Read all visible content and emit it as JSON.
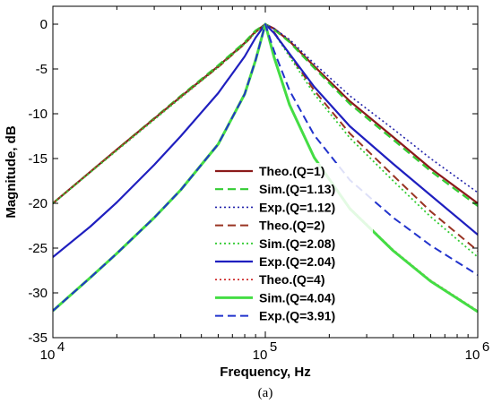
{
  "chart_data": {
    "type": "line",
    "xlabel": "Frequency, Hz",
    "ylabel": "Magnitude, dB",
    "caption": "(a)",
    "xscale": "log",
    "xlim": [
      10000,
      1000000
    ],
    "ylim": [
      -35,
      2
    ],
    "yticks": [
      0,
      -5,
      -10,
      -15,
      -20,
      -25,
      -30,
      -35
    ],
    "xticks": [
      {
        "value": 10000,
        "base": "10",
        "exp": "4"
      },
      {
        "value": 100000,
        "base": "10",
        "exp": "5"
      },
      {
        "value": 1000000,
        "base": "10",
        "exp": "6"
      }
    ],
    "grid": false,
    "legend_position": "inside-bottom-center",
    "series": [
      {
        "name": "Theo.(Q=1)",
        "color": "#8B1A1A",
        "style": "solid",
        "width": 2.2,
        "x": [
          10000,
          20000,
          40000,
          60000,
          80000,
          90000,
          100000,
          110000,
          130000,
          170000,
          250000,
          400000,
          600000,
          1000000
        ],
        "y": [
          -20,
          -14.0,
          -8.1,
          -4.7,
          -2.1,
          -0.8,
          0,
          -0.5,
          -1.9,
          -4.7,
          -8.6,
          -12.6,
          -16.1,
          -20
        ]
      },
      {
        "name": "Sim.(Q=1.13)",
        "color": "#33CC33",
        "style": "dashed",
        "width": 2.2,
        "x": [
          10000,
          20000,
          40000,
          60000,
          80000,
          90000,
          100000,
          110000,
          130000,
          170000,
          250000,
          400000,
          600000,
          1000000
        ],
        "y": [
          -20,
          -14.0,
          -8.0,
          -4.6,
          -2.0,
          -0.7,
          0,
          -0.6,
          -2.0,
          -4.9,
          -8.9,
          -12.9,
          -16.4,
          -20.3
        ]
      },
      {
        "name": "Exp.(Q=1.12)",
        "color": "#2222AA",
        "style": "dotted",
        "width": 1.6,
        "x": [
          10000,
          20000,
          40000,
          60000,
          80000,
          90000,
          100000,
          110000,
          130000,
          170000,
          250000,
          400000,
          600000,
          1000000
        ],
        "y": [
          -20,
          -14.1,
          -8.2,
          -4.8,
          -2.2,
          -0.9,
          0,
          -0.5,
          -1.7,
          -4.4,
          -8.0,
          -11.7,
          -15.0,
          -18.8
        ]
      },
      {
        "name": "Theo.(Q=2)",
        "color": "#993322",
        "style": "dashed",
        "width": 2.0,
        "x": [
          10000,
          20000,
          40000,
          60000,
          80000,
          90000,
          100000,
          110000,
          130000,
          170000,
          250000,
          400000,
          600000,
          1000000
        ],
        "y": [
          -20,
          -14.0,
          -8.1,
          -4.8,
          -2.2,
          -0.9,
          0,
          -0.9,
          -3.4,
          -7.4,
          -12.2,
          -16.9,
          -20.9,
          -25.3
        ]
      },
      {
        "name": "Sim.(Q=2.08)",
        "color": "#33CC33",
        "style": "dotted",
        "width": 1.8,
        "x": [
          10000,
          20000,
          40000,
          60000,
          80000,
          90000,
          100000,
          110000,
          130000,
          170000,
          250000,
          400000,
          600000,
          1000000
        ],
        "y": [
          -20,
          -14.1,
          -8.2,
          -4.8,
          -2.2,
          -0.9,
          0,
          -1.0,
          -3.6,
          -7.8,
          -12.7,
          -17.5,
          -21.5,
          -26.0
        ]
      },
      {
        "name": "Exp.(Q=2.04)",
        "color": "#1F1FBF",
        "style": "solid",
        "width": 2.2,
        "x": [
          10000,
          15000,
          20000,
          30000,
          40000,
          60000,
          80000,
          90000,
          100000,
          110000,
          130000,
          170000,
          250000,
          400000,
          600000,
          1000000
        ],
        "y": [
          -26,
          -22.6,
          -19.9,
          -15.7,
          -12.5,
          -7.7,
          -3.6,
          -1.5,
          0,
          -1.0,
          -3.3,
          -7.0,
          -11.4,
          -15.6,
          -19.1,
          -23.5
        ]
      },
      {
        "name": "Theo.(Q=4)",
        "color": "#CC2222",
        "style": "dotted",
        "width": 1.6,
        "x": [
          10000,
          15000,
          20000,
          30000,
          40000,
          60000,
          80000,
          90000,
          100000,
          110000,
          130000,
          170000,
          250000,
          400000,
          600000,
          1000000
        ],
        "y": [
          -32,
          -28.3,
          -25.6,
          -21.6,
          -18.5,
          -13.4,
          -7.8,
          -4.0,
          0,
          -3.6,
          -8.9,
          -14.8,
          -20.5,
          -25.2,
          -28.6,
          -32.0
        ]
      },
      {
        "name": "Sim.(Q=4.04)",
        "color": "#44DD44",
        "style": "solid",
        "width": 3.0,
        "x": [
          10000,
          15000,
          20000,
          30000,
          40000,
          60000,
          80000,
          90000,
          100000,
          110000,
          130000,
          170000,
          250000,
          400000,
          600000,
          1000000
        ],
        "y": [
          -32,
          -28.3,
          -25.6,
          -21.6,
          -18.5,
          -13.4,
          -7.8,
          -4.0,
          0,
          -3.7,
          -9.0,
          -14.9,
          -20.6,
          -25.3,
          -28.7,
          -32.1
        ]
      },
      {
        "name": "Exp.(Q=3.91)",
        "color": "#2233CC",
        "style": "dashed",
        "width": 2.0,
        "x": [
          10000,
          15000,
          20000,
          30000,
          40000,
          60000,
          80000,
          90000,
          100000,
          110000,
          130000,
          170000,
          250000,
          400000,
          600000,
          1000000
        ],
        "y": [
          -32,
          -28.3,
          -25.6,
          -21.6,
          -18.5,
          -13.4,
          -7.8,
          -4.0,
          0,
          -3.0,
          -7.4,
          -12.4,
          -17.4,
          -21.6,
          -24.7,
          -28.0
        ]
      }
    ]
  }
}
